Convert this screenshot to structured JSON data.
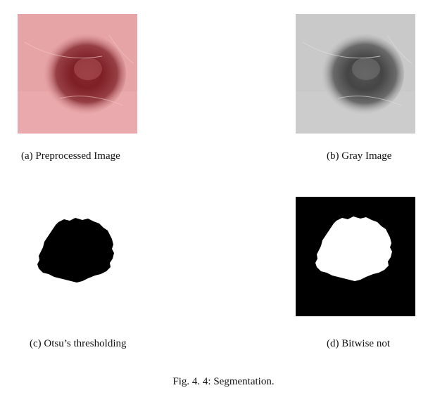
{
  "panels": [
    {
      "id": "a",
      "caption": "(a)  Preprocessed Image"
    },
    {
      "id": "b",
      "caption": "(b) Gray Image"
    },
    {
      "id": "c",
      "caption": "(c) Otsu’s thresholding"
    },
    {
      "id": "d",
      "caption": "(d) Bitwise not"
    }
  ],
  "figure_caption": "Fig. 4. 4: Segmentation.",
  "colors": {
    "skin": "#e9a6a7",
    "lesion_outer": "#8f3c3f",
    "lesion_core": "#7a1e25",
    "gray_bg": "#c8c8c8",
    "gray_lesion": "#4a4a4a",
    "mask": "#000000"
  }
}
